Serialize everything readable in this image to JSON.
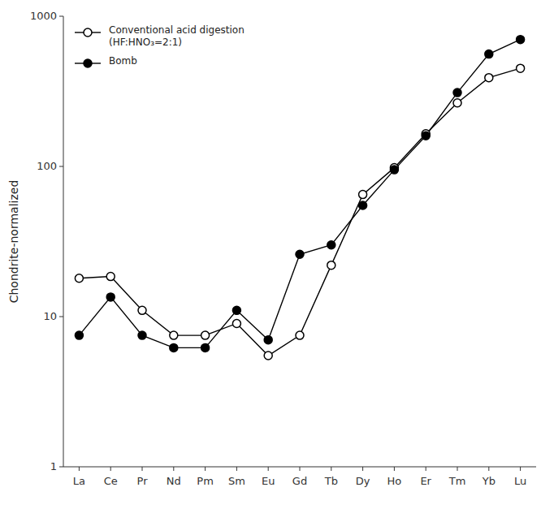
{
  "chart_data": {
    "type": "line",
    "categories": [
      "La",
      "Ce",
      "Pr",
      "Nd",
      "Pm",
      "Sm",
      "Eu",
      "Gd",
      "Tb",
      "Dy",
      "Ho",
      "Er",
      "Tm",
      "Yb",
      "Lu"
    ],
    "series": [
      {
        "name": "Conventional acid digestion\n(HF:HNO₃=2:1)",
        "color": "black",
        "marker": "open-circle",
        "values": [
          18.0,
          18.5,
          11.0,
          7.5,
          7.5,
          9.0,
          5.5,
          7.5,
          22.0,
          65.0,
          98.0,
          165.0,
          265.0,
          390.0,
          450.0
        ]
      },
      {
        "name": "Bomb",
        "color": "black",
        "marker": "filled-circle",
        "values": [
          7.5,
          13.5,
          7.5,
          6.2,
          6.2,
          11.0,
          7.0,
          26.0,
          30.0,
          55.0,
          95.0,
          160.0,
          310.0,
          560.0,
          700.0
        ]
      }
    ],
    "y_label": "Chondrite-normalized",
    "log": "y",
    "ylim": [
      1,
      1000
    ],
    "yticks": [
      1,
      10,
      100,
      1000
    ],
    "grid": false,
    "legend": "upper left"
  }
}
